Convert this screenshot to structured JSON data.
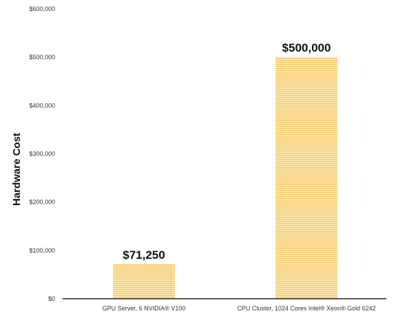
{
  "chart_data": {
    "type": "bar",
    "title": "",
    "xlabel": "",
    "ylabel": "Hardware Cost",
    "categories": [
      "GPU Server, 6 NVIDIA® V100",
      "CPU Cluster, 1024 Cores Intel® Xeon® Gold 6242"
    ],
    "values": [
      71250,
      500000
    ],
    "data_labels": [
      "$71,250",
      "$500,000"
    ],
    "ylim": [
      0,
      600000
    ],
    "yticks": [
      0,
      100000,
      200000,
      300000,
      400000,
      500000,
      600000
    ],
    "ytick_labels": [
      "$0",
      "$100,000",
      "$200,000",
      "$300,000",
      "$400,000",
      "$500,000",
      "$600,000"
    ],
    "grid": false,
    "legend": "none",
    "colors": {
      "bar_fill": "#fde9b8",
      "bar_stripe": "#f5c86a",
      "axis": "#222222"
    }
  }
}
